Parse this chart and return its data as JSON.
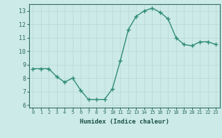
{
  "x": [
    0,
    1,
    2,
    3,
    4,
    5,
    6,
    7,
    8,
    9,
    10,
    11,
    12,
    13,
    14,
    15,
    16,
    17,
    18,
    19,
    20,
    21,
    22,
    23
  ],
  "y": [
    8.7,
    8.7,
    8.7,
    8.1,
    7.7,
    8.0,
    7.1,
    6.4,
    6.4,
    6.4,
    7.2,
    9.3,
    11.6,
    12.6,
    13.0,
    13.2,
    12.9,
    12.4,
    11.0,
    10.5,
    10.4,
    10.7,
    10.7,
    10.5
  ],
  "xlim": [
    -0.5,
    23.5
  ],
  "ylim": [
    5.8,
    13.5
  ],
  "yticks": [
    6,
    7,
    8,
    9,
    10,
    11,
    12,
    13
  ],
  "xticks": [
    0,
    1,
    2,
    3,
    4,
    5,
    6,
    7,
    8,
    9,
    10,
    11,
    12,
    13,
    14,
    15,
    16,
    17,
    18,
    19,
    20,
    21,
    22,
    23
  ],
  "xlabel": "Humidex (Indice chaleur)",
  "line_color": "#2e8b74",
  "marker": "+",
  "marker_size": 4,
  "line_width": 1.0,
  "bg_color": "#cceae8",
  "grid_color": "#b8d8d5",
  "tick_color": "#2e6b5e",
  "label_color": "#1a5048",
  "xlabel_fontsize": 6.5,
  "tick_fontsize_x": 5.0,
  "tick_fontsize_y": 6.0
}
